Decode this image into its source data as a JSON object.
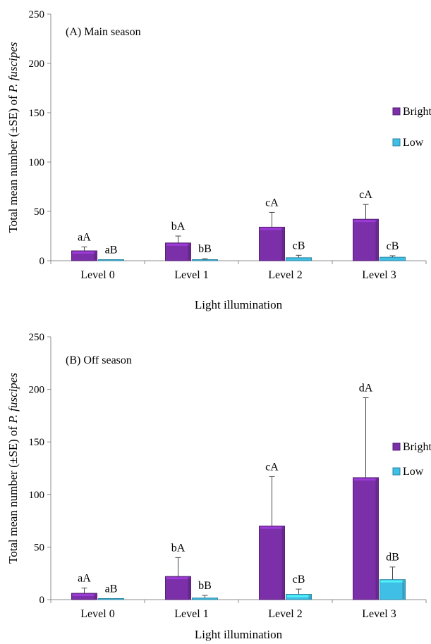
{
  "chart_data": [
    {
      "type": "bar",
      "panel_label": "(A) Main season",
      "categories": [
        "Level 0",
        "Level 1",
        "Level 2",
        "Level 3"
      ],
      "series": [
        {
          "name": "Bright",
          "values": [
            10,
            18,
            34,
            42
          ],
          "errors": [
            4,
            7,
            15,
            15
          ],
          "labels": [
            "aA",
            "bA",
            "cA",
            "cA"
          ],
          "color": "#7B2FA8"
        },
        {
          "name": "Low",
          "values": [
            0.5,
            0.5,
            3,
            3.5
          ],
          "errors": [
            0.5,
            1.5,
            2.5,
            1.5
          ],
          "labels": [
            "aB",
            "bB",
            "cB",
            "cB"
          ],
          "color": "#3FBFE6"
        }
      ],
      "xlabel": "Light illumination",
      "ylabel_prefix": "Total mean number (±SE) of ",
      "ylabel_species": "P. fuscipes",
      "ylim": [
        0,
        250
      ],
      "yticks": [
        0,
        50,
        100,
        150,
        200,
        250
      ],
      "legend_position": "right",
      "grid": false
    },
    {
      "type": "bar",
      "panel_label": "(B) Off season",
      "categories": [
        "Level 0",
        "Level 1",
        "Level 2",
        "Level 3"
      ],
      "series": [
        {
          "name": "Bright",
          "values": [
            6,
            22,
            70,
            116
          ],
          "errors": [
            5,
            18,
            47,
            76
          ],
          "labels": [
            "aA",
            "bA",
            "cA",
            "dA"
          ],
          "color": "#7B2FA8"
        },
        {
          "name": "Low",
          "values": [
            0.5,
            1.5,
            5,
            19
          ],
          "errors": [
            0.5,
            2.5,
            5,
            12
          ],
          "labels": [
            "aB",
            "bB",
            "cB",
            "dB"
          ],
          "color": "#3FBFE6"
        }
      ],
      "xlabel": "Light illumination",
      "ylabel_prefix": "Total mean number (±SE) of ",
      "ylabel_species": "P. fuscipes",
      "ylim": [
        0,
        250
      ],
      "yticks": [
        0,
        50,
        100,
        150,
        200,
        250
      ],
      "legend_position": "right",
      "grid": false
    }
  ]
}
